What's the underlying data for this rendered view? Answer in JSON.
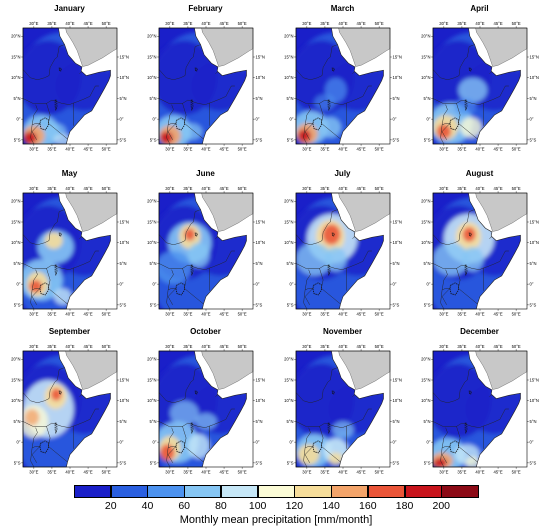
{
  "panels": [
    {
      "month": "January"
    },
    {
      "month": "February"
    },
    {
      "month": "March"
    },
    {
      "month": "April"
    },
    {
      "month": "May"
    },
    {
      "month": "June"
    },
    {
      "month": "July"
    },
    {
      "month": "August"
    },
    {
      "month": "September"
    },
    {
      "month": "October"
    },
    {
      "month": "November"
    },
    {
      "month": "December"
    }
  ],
  "axes": {
    "lon_ticks": [
      "30°E",
      "35°E",
      "40°E",
      "45°E",
      "50°E"
    ],
    "lat_ticks_left": [
      "20°N",
      "15°N",
      "10°N",
      "5°N",
      "0°",
      "5°S"
    ],
    "lat_ticks_right": [
      "15°N",
      "10°N",
      "5°N",
      "0°",
      "5°S"
    ]
  },
  "colorbar": {
    "title": "Monthly mean precipitation [mm/month]",
    "labels": [
      "20",
      "40",
      "60",
      "80",
      "100",
      "120",
      "140",
      "160",
      "180",
      "200"
    ],
    "colors": [
      "#1a1fc9",
      "#2a5fe0",
      "#4c92ef",
      "#86c6f4",
      "#c6e7f7",
      "#fbfbd6",
      "#f6dd9a",
      "#f3a46a",
      "#ea5538",
      "#c8141c",
      "#8c0a16"
    ]
  },
  "palette": {
    "land_gray": "#c8c8c8",
    "sea": "#ffffff",
    "border": "#222222"
  }
}
